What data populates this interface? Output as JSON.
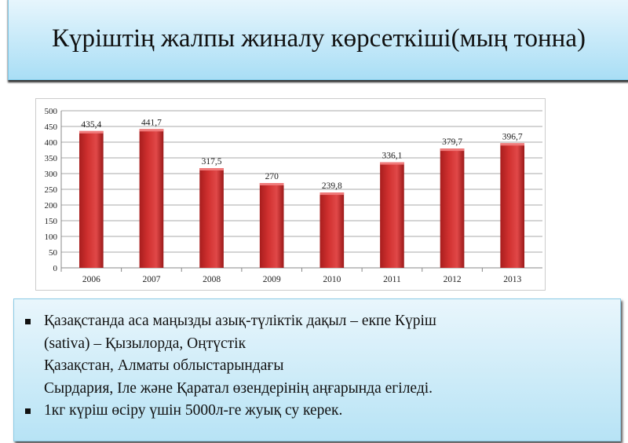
{
  "title": "Күріштің жалпы жиналу көрсеткіші(мың тонна)",
  "chart_data": {
    "type": "bar",
    "categories": [
      "2006",
      "2007",
      "2008",
      "2009",
      "2010",
      "2011",
      "2012",
      "2013"
    ],
    "values": [
      435.4,
      441.7,
      317.5,
      270,
      239.8,
      336.1,
      379.7,
      396.7
    ],
    "data_labels": [
      "435,4",
      "441,7",
      "317,5",
      "270",
      "239,8",
      "336,1",
      "379,7",
      "396,7"
    ],
    "ylim": [
      0,
      500
    ],
    "yticks": [
      0,
      50,
      100,
      150,
      200,
      250,
      300,
      350,
      400,
      450,
      500
    ],
    "grid": true,
    "bar_color": "#d0302f"
  },
  "bullets": [
    {
      "lines": [
        "Қазақстанда аса маңызды азық-түліктік дақыл – екпе Күріш",
        "(sativa) – Қызылорда, Оңтүстік",
        "Қазақстан, Алматы облыстарындағы",
        "Сырдария, Іле және Қаратал өзендерінің аңғарында егіледі."
      ]
    },
    {
      "lines": [
        "1кг күріш өсіру үшін 5000л-ге жуық су керек."
      ]
    }
  ]
}
